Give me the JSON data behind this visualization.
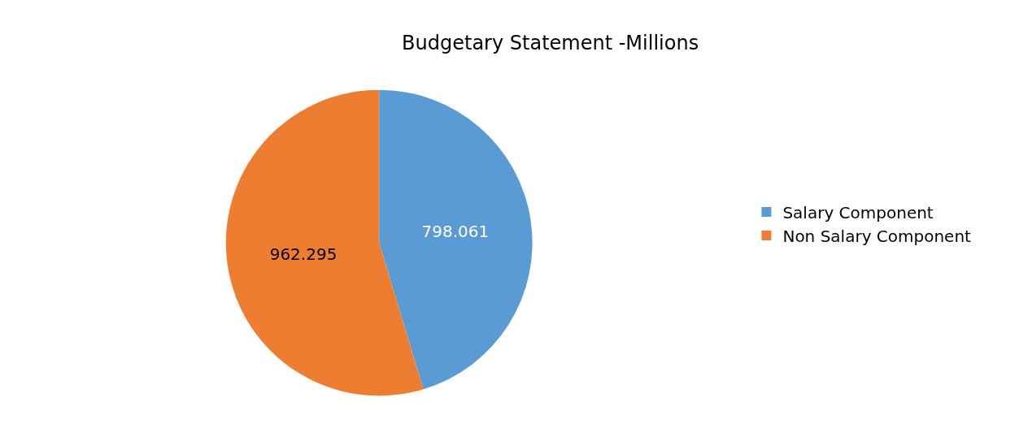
{
  "chart_data": {
    "type": "pie",
    "title": "Budgetary Statement -Millions",
    "categories": [
      "Salary Component",
      "Non Salary Component"
    ],
    "values": [
      798.061,
      962.295
    ],
    "colors": [
      "#5b9bd5",
      "#ed7d31"
    ],
    "data_labels": true,
    "legend": "right"
  }
}
